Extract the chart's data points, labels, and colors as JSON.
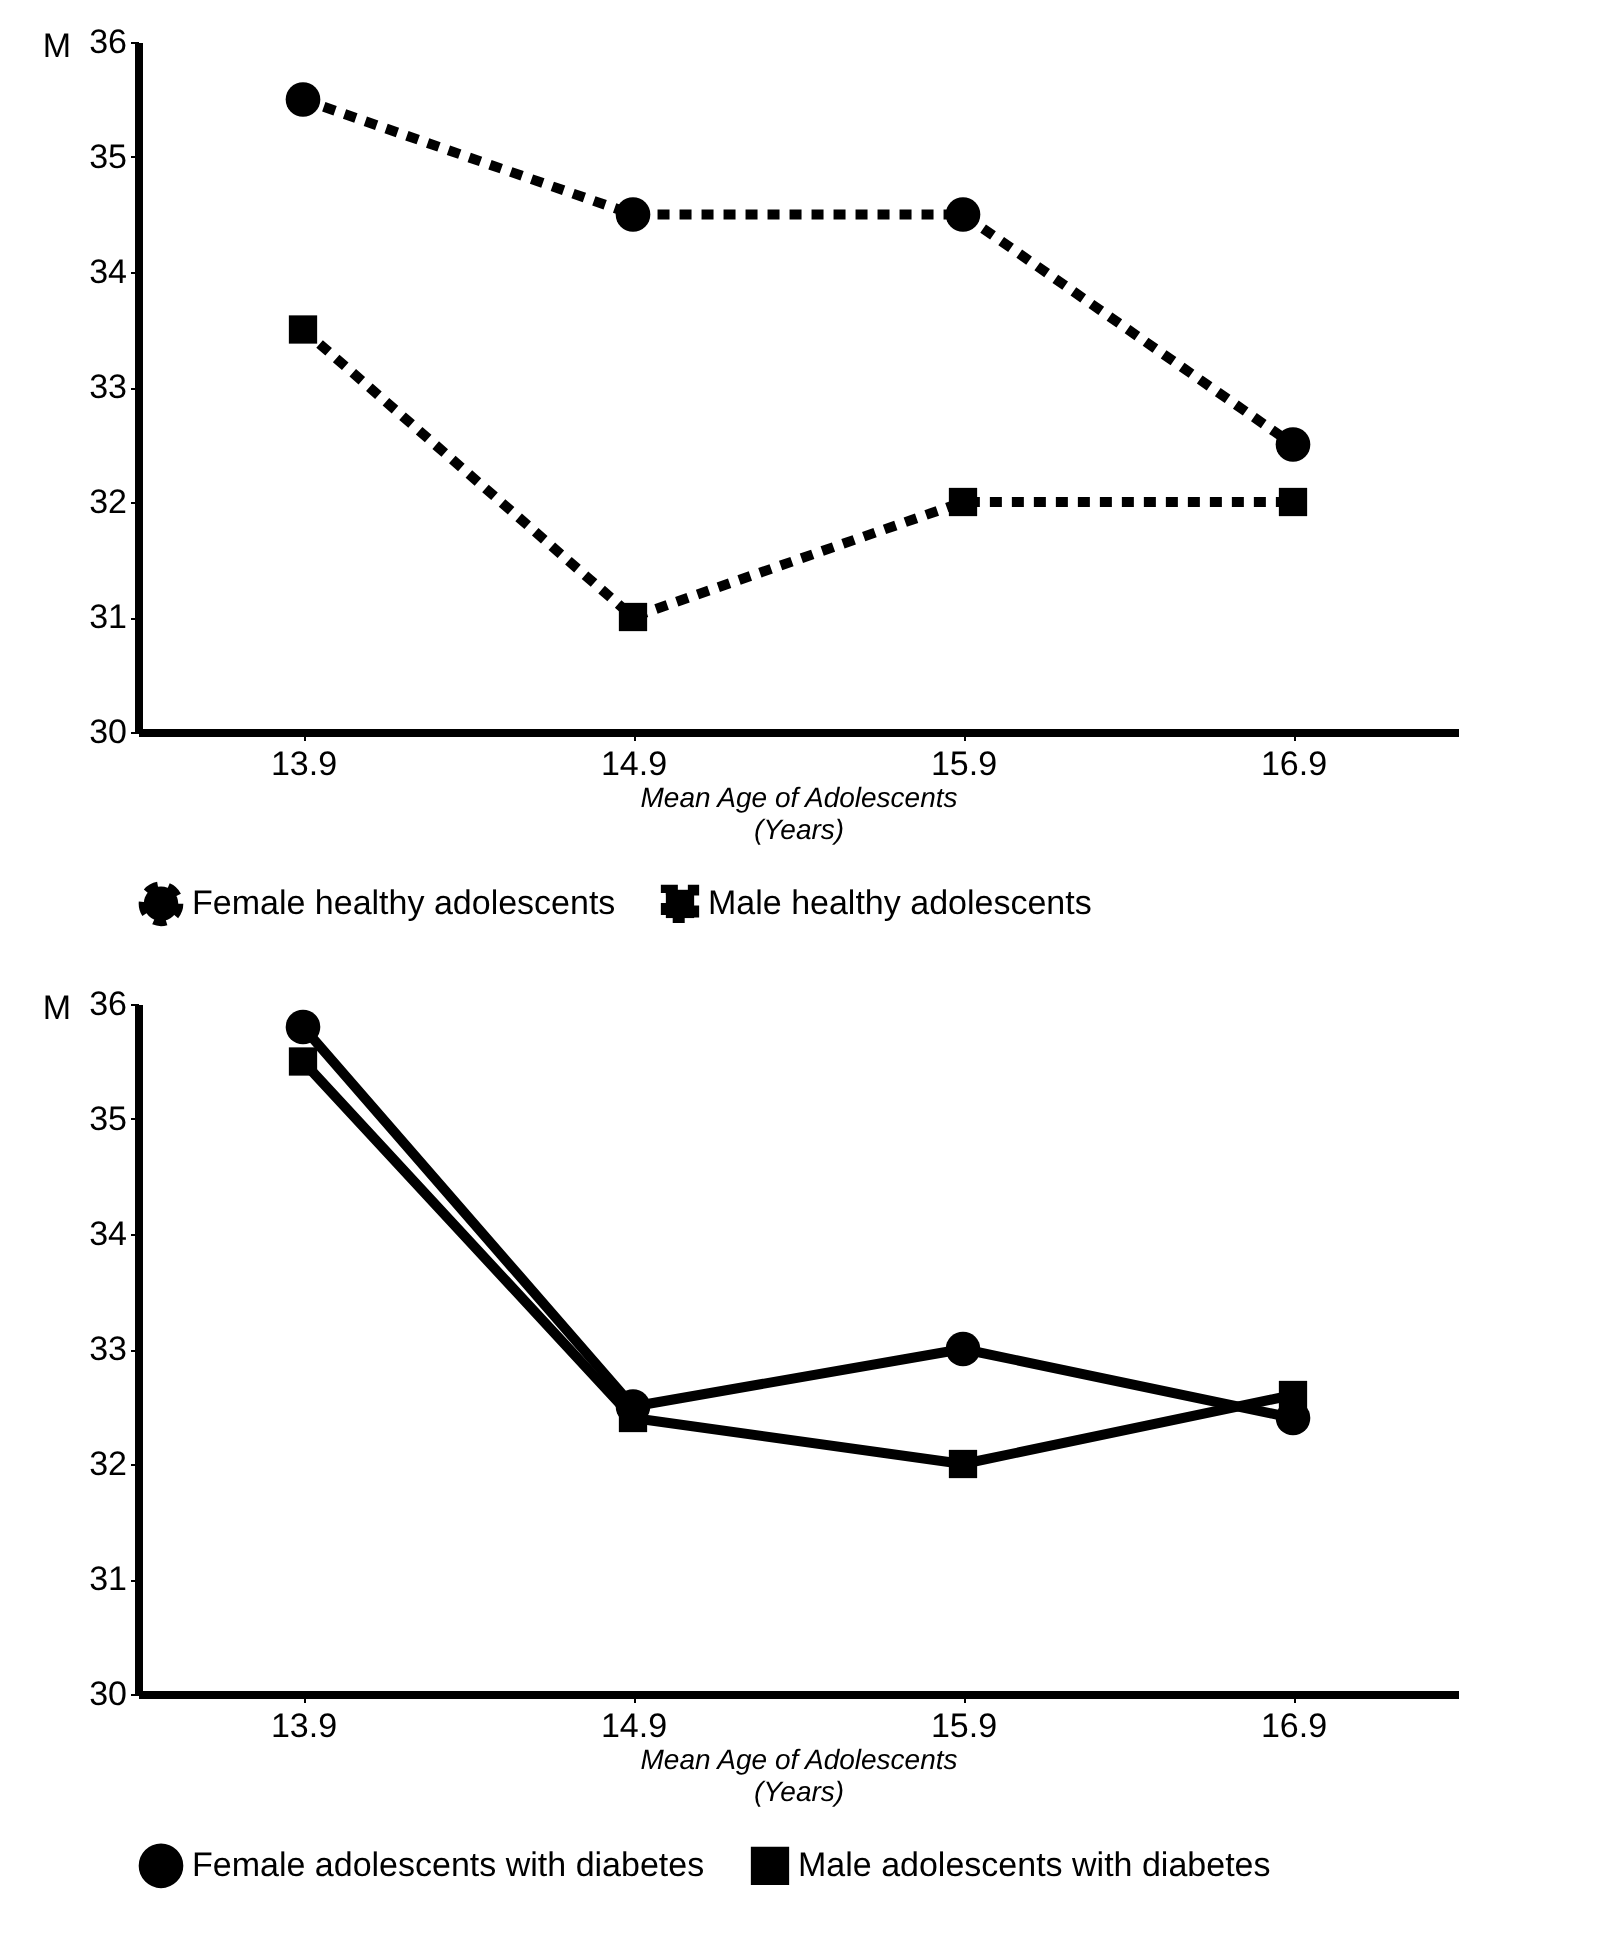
{
  "chart_data": [
    {
      "type": "line",
      "ylabel": "M",
      "xlabel": "Mean Age of Adolescents\n(Years)",
      "categories": [
        "13.9",
        "14.9",
        "15.9",
        "16.9"
      ],
      "ylim": [
        30,
        36
      ],
      "yticks": [
        30,
        31,
        32,
        33,
        34,
        35,
        36
      ],
      "grid": false,
      "legend": "bottom",
      "line_style": "dotted",
      "series": [
        {
          "name": "Female healthy adolescents",
          "color": "#000000",
          "marker": "circle",
          "values": [
            35.5,
            34.5,
            34.5,
            32.5
          ]
        },
        {
          "name": "Male healthy adolescents",
          "color": "#000000",
          "marker": "square",
          "values": [
            33.5,
            31,
            32,
            32
          ]
        }
      ]
    },
    {
      "type": "line",
      "ylabel": "M",
      "xlabel": "Mean Age of Adolescents\n(Years)",
      "categories": [
        "13.9",
        "14.9",
        "15.9",
        "16.9"
      ],
      "ylim": [
        30,
        36
      ],
      "yticks": [
        30,
        31,
        32,
        33,
        34,
        35,
        36
      ],
      "grid": false,
      "legend": "bottom",
      "line_style": "solid",
      "series": [
        {
          "name": "Female adolescents with diabetes",
          "color": "#000000",
          "marker": "circle",
          "values": [
            35.8,
            32.5,
            33,
            32.4
          ]
        },
        {
          "name": "Male adolescents with diabetes",
          "color": "#000000",
          "marker": "square",
          "values": [
            35.5,
            32.4,
            32,
            32.6
          ]
        }
      ]
    }
  ]
}
